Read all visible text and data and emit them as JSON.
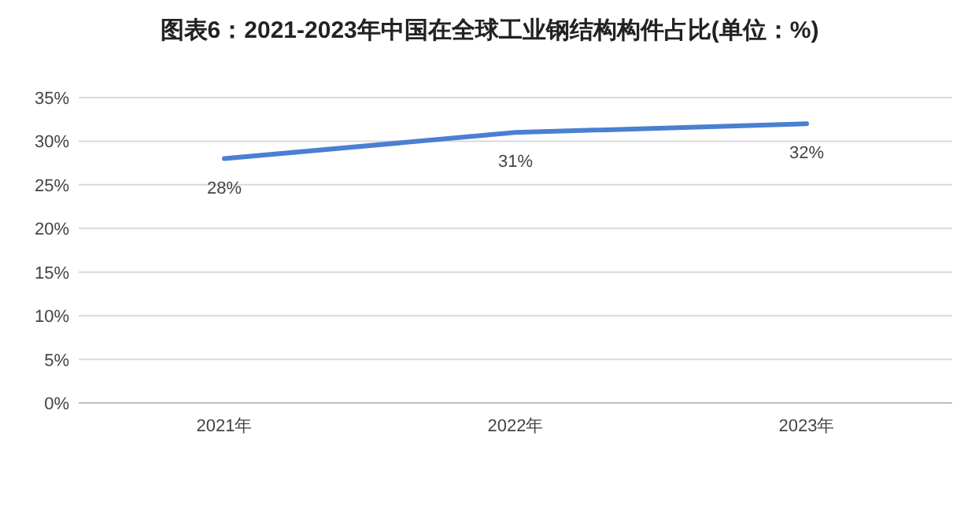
{
  "chart_data": {
    "type": "line",
    "title": "图表6：2021-2023年中国在全球工业钢结构构件占比(单位：%)",
    "categories": [
      "2021年",
      "2022年",
      "2023年"
    ],
    "series": [
      {
        "color": "#4a7fd2",
        "values": [
          28,
          31,
          32
        ],
        "value_labels": [
          "28%",
          "31%",
          "32%"
        ]
      }
    ],
    "ylim": [
      0,
      35
    ],
    "yticks": [
      {
        "value": 0,
        "label": "0%"
      },
      {
        "value": 5,
        "label": "5%"
      },
      {
        "value": 10,
        "label": "10%"
      },
      {
        "value": 15,
        "label": "15%"
      },
      {
        "value": 20,
        "label": "20%"
      },
      {
        "value": 25,
        "label": "25%"
      },
      {
        "value": 30,
        "label": "30%"
      },
      {
        "value": 35,
        "label": "35%"
      }
    ],
    "grid": "y",
    "marker": "none",
    "line_style": "solid"
  }
}
